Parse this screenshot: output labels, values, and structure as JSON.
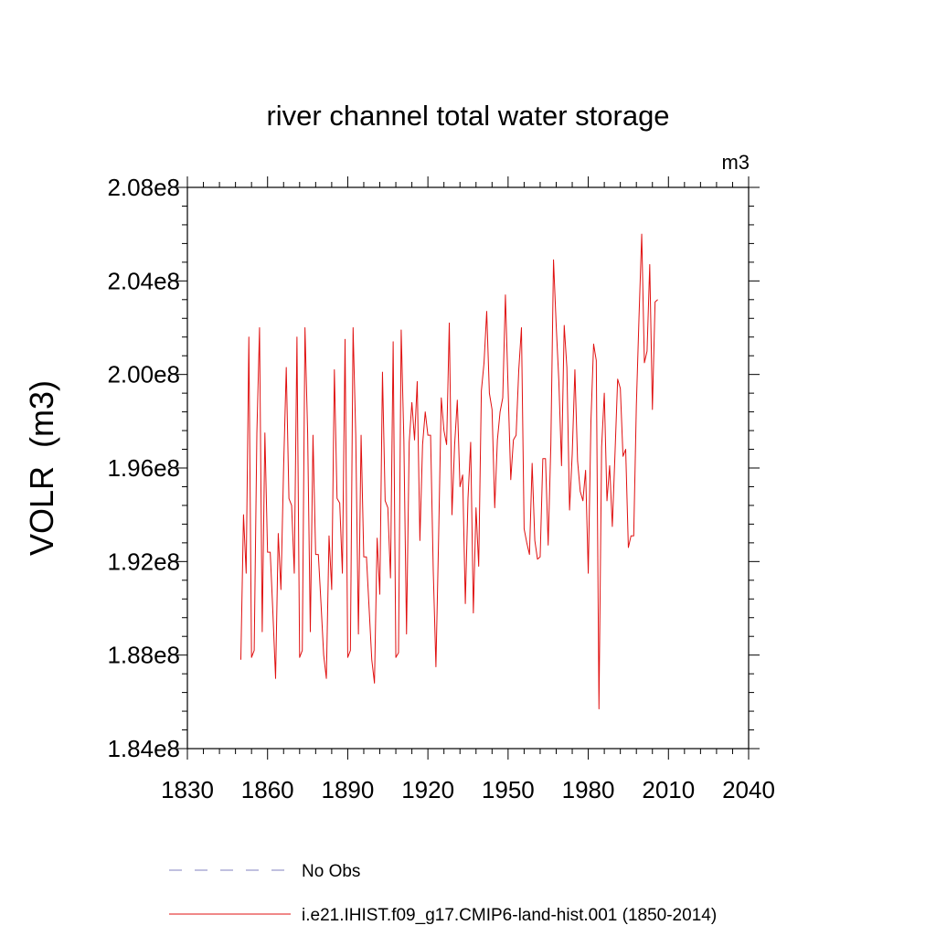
{
  "chart_data": {
    "type": "line",
    "title": "river channel total water storage",
    "units_label": "m3",
    "ylabel": "VOLR  (m3)",
    "xlabel": "",
    "xlim": [
      1830,
      2040
    ],
    "ylim": [
      184000000,
      208000000
    ],
    "x_ticks": [
      1830,
      1860,
      1890,
      1920,
      1950,
      1980,
      2010,
      2040
    ],
    "y_ticks": [
      184000000,
      188000000,
      192000000,
      196000000,
      200000000,
      204000000,
      208000000
    ],
    "y_tick_labels": [
      "1.84e8",
      "1.88e8",
      "1.92e8",
      "1.96e8",
      "2.00e8",
      "2.04e8",
      "2.08e8"
    ],
    "grid": false,
    "legend_position": "bottom",
    "series": [
      {
        "name": "No Obs",
        "color": "#8080c0",
        "style": "dashed",
        "x": [],
        "y": []
      },
      {
        "name": "i.e21.IHIST.f09_g17.CMIP6-land-hist.001 (1850-2014)",
        "color": "#e01010",
        "style": "solid",
        "x_start": 1850,
        "x_step": 1,
        "y": [
          187800000,
          194000000,
          191500000,
          201600000,
          187900000,
          188200000,
          197500000,
          202000000,
          189000000,
          197500000,
          192400000,
          192400000,
          189800000,
          187000000,
          193200000,
          190800000,
          196000000,
          200300000,
          194700000,
          194400000,
          191500000,
          201600000,
          187900000,
          188200000,
          202000000,
          197500000,
          189000000,
          197400000,
          192300000,
          192300000,
          190200000,
          188000000,
          187000000,
          193100000,
          190800000,
          200200000,
          194700000,
          194500000,
          191500000,
          201500000,
          187900000,
          188200000,
          202000000,
          197400000,
          188900000,
          197400000,
          192200000,
          192200000,
          190000000,
          187800000,
          186800000,
          193000000,
          190600000,
          200100000,
          194600000,
          194300000,
          191300000,
          201400000,
          187900000,
          188100000,
          201900000,
          197200000,
          188900000,
          197100000,
          198800000,
          197200000,
          199700000,
          192900000,
          197000000,
          198400000,
          197400000,
          197400000,
          191600000,
          187500000,
          193000000,
          199000000,
          197600000,
          197000000,
          202200000,
          194000000,
          197000000,
          198900000,
          195200000,
          195700000,
          190200000,
          194700000,
          197100000,
          189800000,
          194300000,
          191800000,
          199300000,
          200500000,
          202700000,
          199200000,
          198500000,
          194300000,
          197200000,
          198400000,
          199000000,
          203400000,
          199400000,
          195500000,
          197200000,
          197400000,
          200200000,
          202000000,
          193400000,
          192800000,
          192300000,
          196200000,
          192900000,
          192100000,
          192200000,
          196400000,
          196400000,
          192700000,
          197000000,
          204900000,
          202100000,
          199700000,
          196100000,
          202100000,
          200300000,
          194200000,
          196600000,
          200200000,
          196300000,
          195000000,
          194600000,
          195900000,
          191500000,
          198000000,
          201300000,
          200600000,
          185700000,
          196900000,
          199200000,
          194600000,
          196100000,
          193500000,
          196600000,
          199800000,
          199400000,
          196500000,
          196800000,
          192600000,
          193100000,
          193100000,
          198700000,
          202500000,
          206000000,
          200500000,
          201000000,
          204700000,
          198500000,
          203100000,
          203200000
        ]
      }
    ]
  }
}
